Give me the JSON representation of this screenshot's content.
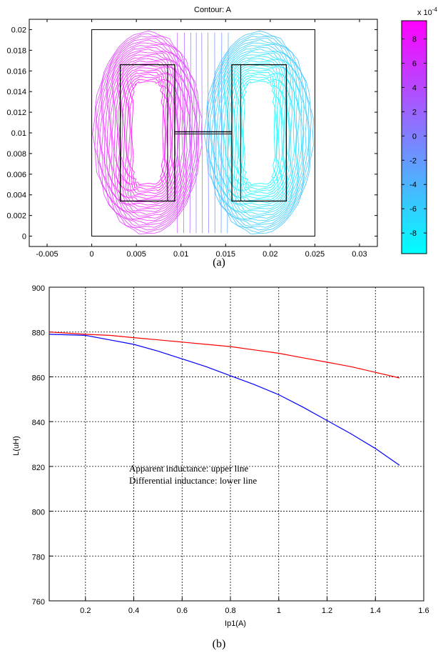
{
  "panel_a": {
    "title": "Contour: A",
    "caption": "(a)",
    "colorbar_exponent_label": "x 10",
    "colorbar_exponent_power": "-4",
    "colormap": [
      "#00ffff",
      "#ff00ff"
    ]
  },
  "panel_b": {
    "caption": "(b)",
    "annotation_line1": "Apparent inductance:  upper line",
    "annotation_line2": "Differential inductance:  lower line"
  },
  "chart_data": [
    {
      "type": "heatmap",
      "title": "Contour: A",
      "xlim": [
        -0.007,
        0.032
      ],
      "ylim": [
        -0.001,
        0.021
      ],
      "x_ticks": [
        "-0.005",
        "0",
        "0.005",
        "0.01",
        "0.015",
        "0.02",
        "0.025",
        "0.03"
      ],
      "y_ticks": [
        "0",
        "0.002",
        "0.004",
        "0.006",
        "0.008",
        "0.01",
        "0.012",
        "0.014",
        "0.016",
        "0.018",
        "0.02"
      ],
      "domain_outline": [
        0,
        0.025,
        0,
        0.02
      ],
      "windows": [
        {
          "x": [
            0.0032,
            0.0093
          ],
          "y": [
            0.0034,
            0.0166
          ],
          "inner_line_x": 0.0085
        },
        {
          "x": [
            0.0157,
            0.0218
          ],
          "y": [
            0.0034,
            0.0166
          ],
          "inner_line_x": 0.0167
        }
      ],
      "conductor_bar": {
        "x": [
          0.0093,
          0.0157
        ],
        "y": 0.0101
      },
      "colorbar": {
        "range": [
          -9.7,
          9.5
        ],
        "ticks": [
          "8",
          "6",
          "4",
          "2",
          "0",
          "-2",
          "-4",
          "-6",
          "-8"
        ],
        "exponent": "-4"
      }
    },
    {
      "type": "line",
      "xlabel": "Ip1(A)",
      "ylabel": "L(uH)",
      "xlim": [
        0.05,
        1.6
      ],
      "ylim": [
        760,
        900
      ],
      "x_ticks": [
        "0.2",
        "0.4",
        "0.6",
        "0.8",
        "1",
        "1.2",
        "1.4",
        "1.6"
      ],
      "y_ticks": [
        "760",
        "780",
        "800",
        "820",
        "840",
        "860",
        "880",
        "900"
      ],
      "grid": true,
      "series": [
        {
          "color": "#ff0000",
          "x": [
            0.05,
            0.2,
            0.3,
            0.4,
            0.5,
            0.6,
            0.7,
            0.8,
            0.9,
            1.0,
            1.1,
            1.2,
            1.3,
            1.4,
            1.5
          ],
          "y": [
            880,
            879,
            878.5,
            877.5,
            876.5,
            875.5,
            874.5,
            873.5,
            872,
            870.5,
            868.5,
            866.5,
            864.5,
            862,
            859.5
          ]
        },
        {
          "color": "#0000ff",
          "x": [
            0.05,
            0.2,
            0.3,
            0.4,
            0.5,
            0.6,
            0.7,
            0.8,
            0.9,
            1.0,
            1.1,
            1.2,
            1.3,
            1.4,
            1.5
          ],
          "y": [
            879,
            878.5,
            876.5,
            874.5,
            871.5,
            868,
            864.5,
            860.5,
            856.5,
            852,
            846.5,
            840.5,
            834.5,
            828,
            820.5
          ]
        }
      ]
    }
  ]
}
